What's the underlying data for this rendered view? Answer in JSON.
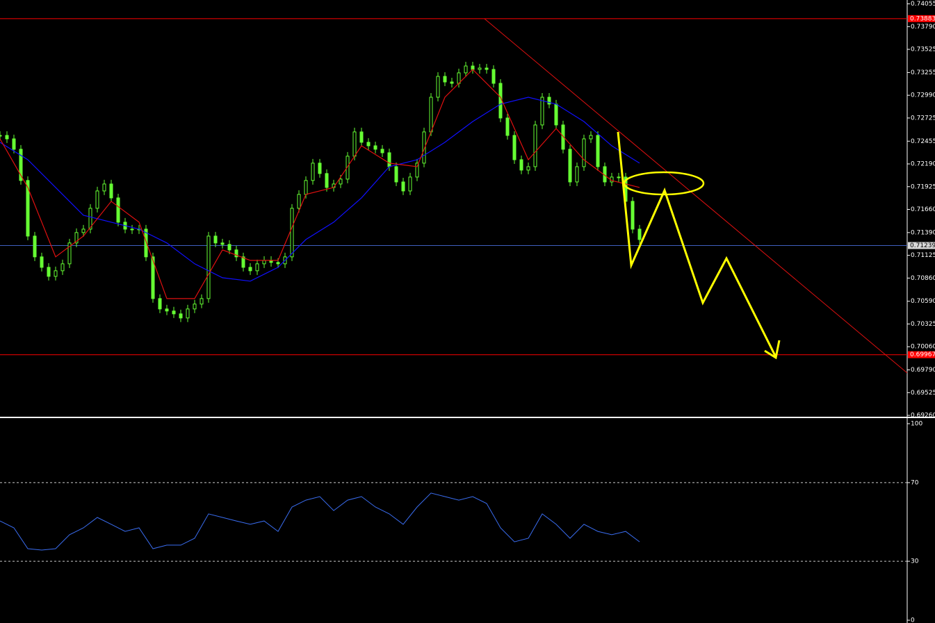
{
  "chart_data": [
    {
      "type": "candlestick",
      "color": "#66ff33",
      "ylim": [
        0.6922,
        0.741
      ],
      "yticks": [
        0.74055,
        {
          "value": 0.7379,
          "label": "0.73790"
        },
        0.73525,
        0.73255,
        {
          "value": 0.7299,
          "label": "0.72990"
        },
        0.72725,
        0.72455,
        {
          "value": 0.7219,
          "label": "0.72190"
        },
        0.71925,
        {
          "value": 0.7166,
          "label": "0.71660"
        },
        {
          "value": 0.7139,
          "label": "0.71390"
        },
        0.71125,
        {
          "value": 0.7086,
          "label": "0.70860"
        },
        {
          "value": 0.7059,
          "label": "0.70590"
        },
        0.70325,
        {
          "value": 0.7006,
          "label": "0.70060"
        },
        {
          "value": 0.6979,
          "label": "0.69790"
        },
        0.69525,
        {
          "value": 0.6926,
          "label": "0.69260"
        }
      ],
      "values": [
        0.72522,
        0.72482,
        0.72361,
        0.71997,
        0.71349,
        0.71107,
        0.70985,
        0.7088,
        0.70945,
        0.71026,
        0.71269,
        0.7139,
        0.7143,
        0.71673,
        0.71875,
        0.71956,
        0.71794,
        0.71511,
        0.7143,
        0.7143,
        0.7143,
        0.71107,
        0.70621,
        0.705,
        0.70476,
        0.70443,
        0.70395,
        0.705,
        0.70557,
        0.70621,
        0.71349,
        0.71269,
        0.71252,
        0.71188,
        0.71107,
        0.70985,
        0.70945,
        0.71026,
        0.71066,
        0.71042,
        0.71026,
        0.71107,
        0.71673,
        0.71835,
        0.71997,
        0.72199,
        0.72078,
        0.71916,
        0.71956,
        0.72013,
        0.7228,
        0.72563,
        0.72442,
        0.72401,
        0.72361,
        0.7232,
        0.72158,
        0.7198,
        0.71875,
        0.72037,
        0.72199,
        0.72563,
        0.72967,
        0.7321,
        0.73145,
        0.73129,
        0.73251,
        0.73331,
        0.73291,
        0.73307,
        0.73291,
        0.73129,
        0.72725,
        0.72522,
        0.72239,
        0.72118,
        0.72158,
        0.72644,
        0.72967,
        0.72887,
        0.72644,
        0.72361,
        0.7198,
        0.72158,
        0.72482,
        0.72522,
        0.72158,
        0.7198,
        0.72037,
        0.72037,
        0.71754,
        0.7143,
        0.71309
      ],
      "series": [
        {
          "color": "#1010ff",
          "values": [
            0.72442,
            0.72239,
            0.71916,
            0.71592,
            0.71511,
            0.7143,
            0.71269,
            0.71026,
            0.70864,
            0.70824,
            0.70985,
            0.71309,
            0.71511,
            0.71794,
            0.72158,
            0.72239,
            0.72442,
            0.72684,
            0.72887,
            0.72967,
            0.72887,
            0.72684,
            0.72401,
            0.72199
          ]
        },
        {
          "color": "#e01010",
          "values": [
            0.72482,
            0.71916,
            0.71107,
            0.71349,
            0.71754,
            0.71511,
            0.70621,
            0.70621,
            0.71188,
            0.71066,
            0.71066,
            0.71835,
            0.71916,
            0.72401,
            0.72199,
            0.72158,
            0.72967,
            0.73291,
            0.72967,
            0.72239,
            0.72603,
            0.72239,
            0.71997,
            0.71916
          ]
        }
      ],
      "hlines": [
        {
          "value": 0.73883,
          "color": "#ff0000"
        },
        {
          "value": 0.71239,
          "color": "#4060c0"
        },
        {
          "value": 0.69967,
          "color": "#ff0000"
        }
      ]
    },
    {
      "type": "line",
      "ylim": [
        0,
        100
      ],
      "yticks": [
        100,
        70,
        30,
        0
      ],
      "levels": [
        70,
        30
      ],
      "color": "#3a6df0",
      "values": [
        50.5,
        47.0,
        36.4,
        35.7,
        36.4,
        43.5,
        47.0,
        52.3,
        48.8,
        45.2,
        47.0,
        36.4,
        38.2,
        38.2,
        41.7,
        54.1,
        52.3,
        50.5,
        48.8,
        50.5,
        45.2,
        57.6,
        61.1,
        62.9,
        55.8,
        61.1,
        62.9,
        57.6,
        54.1,
        48.8,
        57.6,
        64.7,
        62.9,
        61.1,
        62.9,
        59.4,
        47.0,
        39.9,
        41.7,
        54.1,
        48.8,
        41.7,
        48.8,
        45.2,
        43.5,
        45.2,
        39.9
      ]
    }
  ]
}
